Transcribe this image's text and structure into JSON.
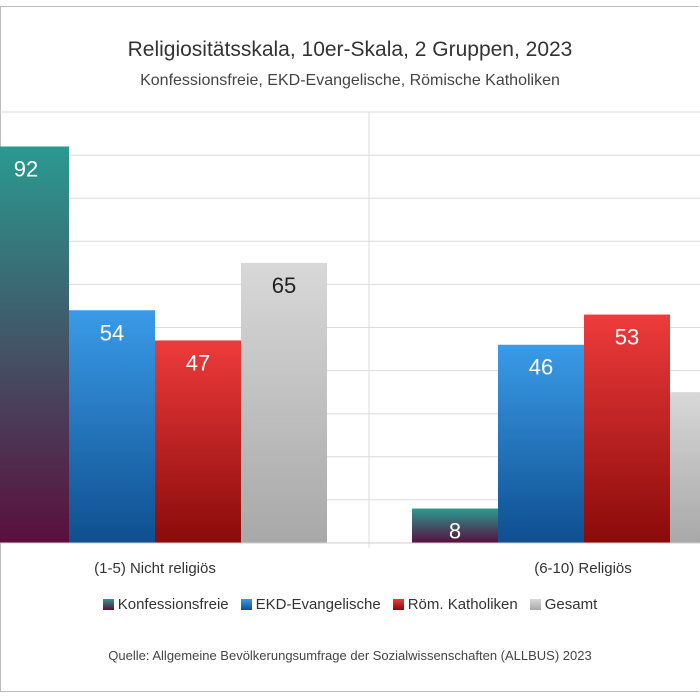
{
  "title": "Religiositätsskala, 10er-Skala, 2 Gruppen, 2023",
  "subtitle": "Konfessionsfreie, EKD-Evangelische, Römische Katholiken",
  "source": "Quelle: Allgemeine Bevölkerungsumfrage der Sozialwissenschaften (ALLBUS) 2023",
  "chart_data": {
    "type": "bar",
    "title": "Religiositätsskala, 10er-Skala, 2 Gruppen, 2023",
    "subtitle": "Konfessionsfreie, EKD-Evangelische, Römische Katholiken",
    "categories": [
      "(1-5) Nicht religiös",
      "(6-10) Religiös"
    ],
    "series": [
      {
        "name": "Konfessionsfreie",
        "values": [
          92,
          8
        ],
        "color_top": "#2a9a90",
        "color_bottom": "#5a0f3e"
      },
      {
        "name": "EKD-Evangelische",
        "values": [
          54,
          46
        ],
        "color_top": "#3a9be8",
        "color_bottom": "#0e4f8f"
      },
      {
        "name": "Röm. Katholiken",
        "values": [
          47,
          53
        ],
        "color_top": "#ee3b3b",
        "color_bottom": "#8a0a0a"
      },
      {
        "name": "Gesamt",
        "values": [
          65,
          35
        ],
        "color_top": "#d8d8d8",
        "color_bottom": "#a8a8a8"
      }
    ],
    "ylim": [
      0,
      100
    ],
    "grid": true,
    "legend": "bottom"
  }
}
